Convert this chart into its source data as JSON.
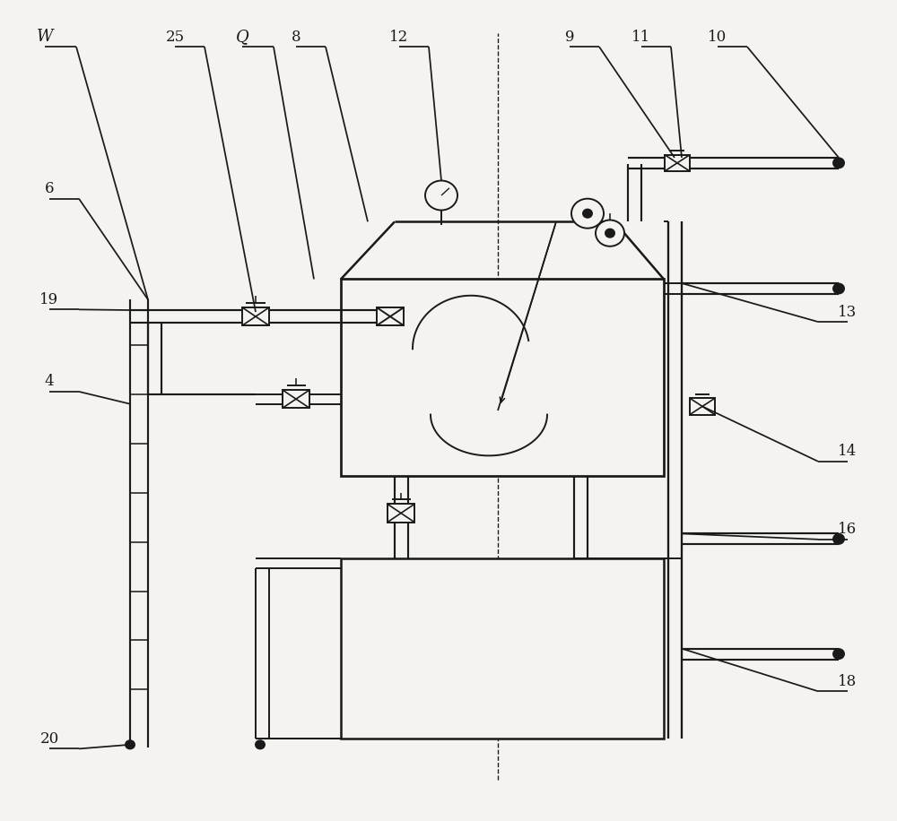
{
  "bg_color": "#f5f3f0",
  "line_color": "#1a1a1a",
  "lw": 1.4,
  "fig_width": 10.0,
  "fig_height": 9.16
}
